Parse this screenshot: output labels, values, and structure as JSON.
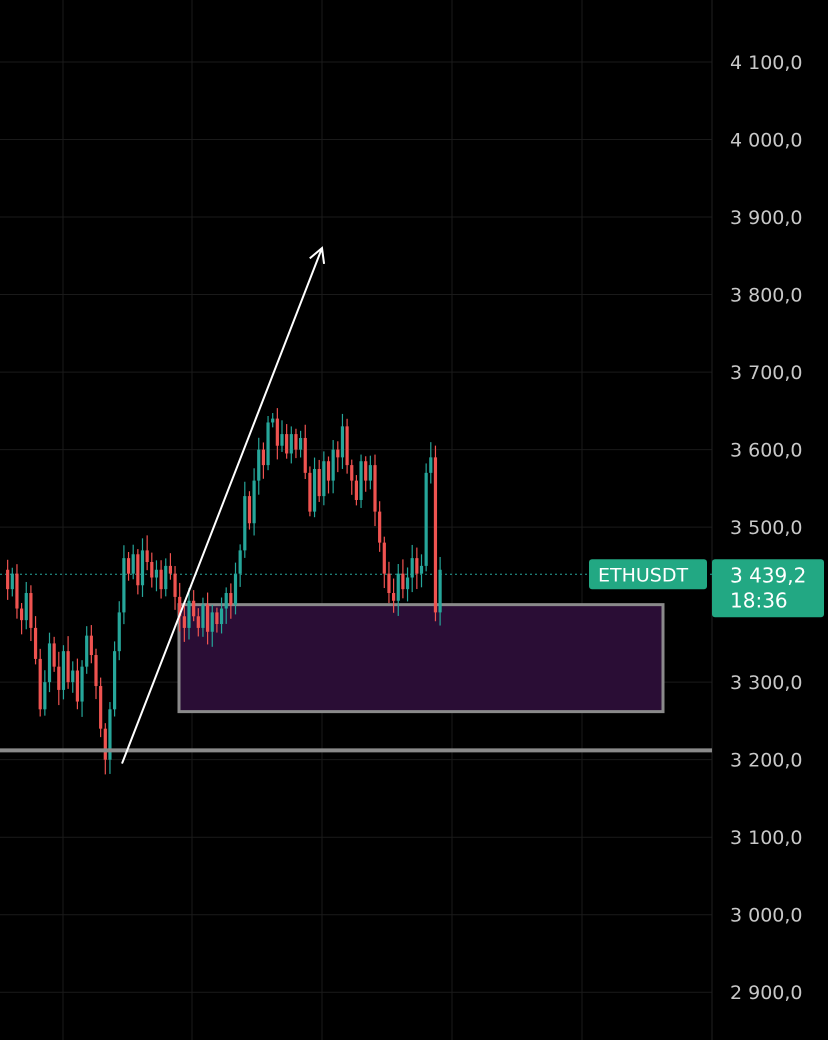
{
  "chart_data": {
    "type": "candlestick",
    "symbol": "ETHUSDT",
    "last_price": 3439.2,
    "last_price_label": "3 439,2",
    "countdown": "18:36",
    "ylim": [
      2870,
      4135
    ],
    "y_ticks": [
      {
        "value": 4100,
        "label": "4 100,0"
      },
      {
        "value": 4000,
        "label": "4 000,0"
      },
      {
        "value": 3900,
        "label": "3 900,0"
      },
      {
        "value": 3800,
        "label": "3 800,0"
      },
      {
        "value": 3700,
        "label": "3 700,0"
      },
      {
        "value": 3600,
        "label": "3 600,0"
      },
      {
        "value": 3500,
        "label": "3 500,0"
      },
      {
        "value": 3300,
        "label": "3 300,0"
      },
      {
        "value": 3200,
        "label": "3 200,0"
      },
      {
        "value": 3100,
        "label": "3 100,0"
      },
      {
        "value": 3000,
        "label": "3 000,0"
      },
      {
        "value": 2900,
        "label": "2 900,0"
      }
    ],
    "grid": true,
    "colors": {
      "background": "#000000",
      "up": "#26a69a",
      "down": "#ef5350",
      "zone_fill": "#2a0d35",
      "zone_border": "#8a8a8a",
      "support_line": "#8a8a8a",
      "arrow": "#ffffff",
      "price_tag": "#22a883"
    },
    "price_path": [
      3445,
      3420,
      3440,
      3395,
      3380,
      3415,
      3370,
      3330,
      3265,
      3300,
      3350,
      3320,
      3290,
      3340,
      3300,
      3315,
      3275,
      3320,
      3360,
      3335,
      3295,
      3240,
      3200,
      3265,
      3340,
      3390,
      3460,
      3440,
      3465,
      3425,
      3470,
      3455,
      3435,
      3445,
      3420,
      3450,
      3440,
      3410,
      3385,
      3370,
      3405,
      3385,
      3370,
      3400,
      3365,
      3390,
      3375,
      3395,
      3415,
      3400,
      3440,
      3470,
      3540,
      3505,
      3560,
      3600,
      3580,
      3635,
      3640,
      3605,
      3620,
      3595,
      3620,
      3600,
      3615,
      3570,
      3520,
      3575,
      3540,
      3585,
      3560,
      3600,
      3590,
      3630,
      3580,
      3560,
      3535,
      3585,
      3560,
      3580,
      3520,
      3480,
      3440,
      3415,
      3405,
      3440,
      3420,
      3435,
      3460,
      3440,
      3450,
      3570,
      3590,
      3390,
      3445
    ],
    "resistance_zone": {
      "top": 3400,
      "bottom": 3262
    },
    "support_line": 3212,
    "trend_arrow": {
      "from": {
        "bar": 24,
        "price": 3195
      },
      "to": {
        "bar": 64,
        "price": 3860
      }
    }
  }
}
